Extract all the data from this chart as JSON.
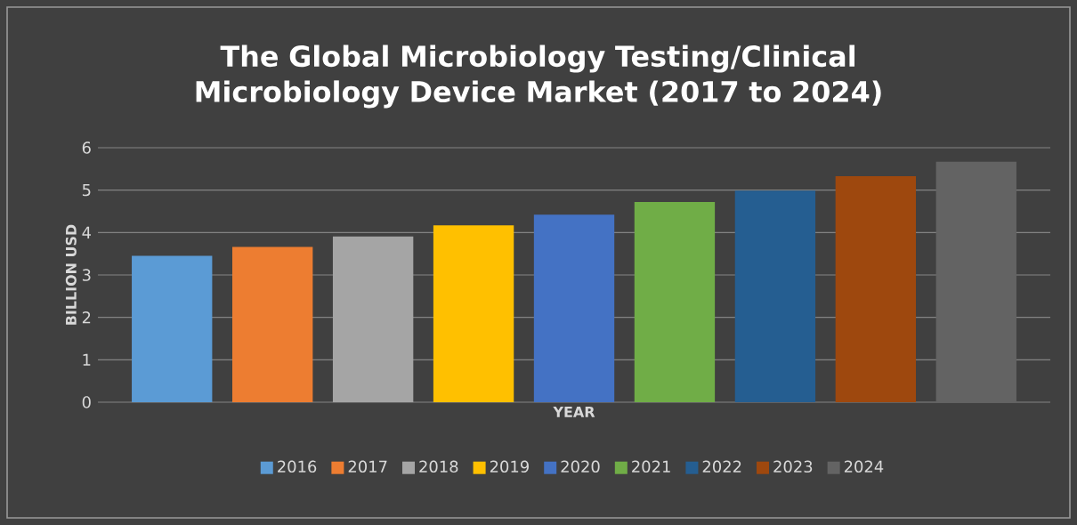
{
  "chart_data": {
    "type": "bar",
    "title": "The Global Microbiology Testing/Clinical Microbiology Device Market (2017 to 2024)",
    "xlabel": "YEAR",
    "ylabel": "BILLION USD",
    "categories": [
      null
    ],
    "series": [
      {
        "name": "2016",
        "color": "#5b9bd5",
        "values": [
          3.45
        ]
      },
      {
        "name": "2017",
        "color": "#ed7d31",
        "values": [
          3.66
        ]
      },
      {
        "name": "2018",
        "color": "#a5a5a5",
        "values": [
          3.91
        ]
      },
      {
        "name": "2019",
        "color": "#ffc000",
        "values": [
          4.17
        ]
      },
      {
        "name": "2020",
        "color": "#4472c4",
        "values": [
          4.42
        ]
      },
      {
        "name": "2021",
        "color": "#70ad47",
        "values": [
          4.72
        ]
      },
      {
        "name": "2022",
        "color": "#255e91",
        "values": [
          4.99
        ]
      },
      {
        "name": "2023",
        "color": "#9e480e",
        "values": [
          5.33
        ]
      },
      {
        "name": "2024",
        "color": "#636363",
        "values": [
          5.67
        ]
      }
    ],
    "ylim": [
      0,
      6
    ],
    "yticks": [
      0,
      1,
      2,
      3,
      4,
      5,
      6
    ],
    "grid": "y",
    "legend": "bottom"
  }
}
